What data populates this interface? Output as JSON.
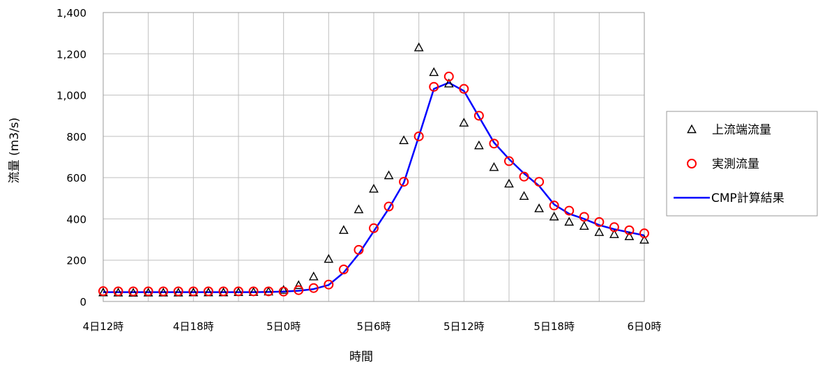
{
  "chart_data": {
    "type": "line",
    "title": "",
    "xlabel": "時間",
    "ylabel": "流量 (m3/s)",
    "ylim": [
      0,
      1400
    ],
    "ytick_values": [
      0,
      200,
      400,
      600,
      800,
      1000,
      1200,
      1400
    ],
    "ytick_labels": [
      "0",
      "200",
      "400",
      "600",
      "800",
      "1,000",
      "1,200",
      "1,400"
    ],
    "xlim": [
      0,
      36
    ],
    "xtick_values": [
      0,
      6,
      12,
      18,
      24,
      30,
      36
    ],
    "xtick_labels": [
      "4日12時",
      "4日18時",
      "5日0時",
      "5日6時",
      "5日12時",
      "5日18時",
      "6日0時"
    ],
    "grid": true,
    "legend_position": "right",
    "series": [
      {
        "name": "上流端流量",
        "style": "triangle-marker",
        "color": "#000000",
        "x": [
          0,
          1,
          2,
          3,
          4,
          5,
          6,
          7,
          8,
          9,
          10,
          11,
          12,
          13,
          14,
          15,
          16,
          17,
          18,
          19,
          20,
          21,
          22,
          23,
          24,
          25,
          26,
          27,
          28,
          29,
          30,
          31,
          32,
          33,
          34,
          35,
          36
        ],
        "values": [
          43,
          42,
          41,
          42,
          42,
          42,
          43,
          43,
          43,
          44,
          45,
          47,
          55,
          78,
          120,
          205,
          345,
          445,
          545,
          610,
          780,
          1230,
          1110,
          1055,
          865,
          755,
          650,
          570,
          510,
          450,
          410,
          385,
          365,
          335,
          325,
          315,
          298
        ]
      },
      {
        "name": "実測流量",
        "style": "circle-marker",
        "color": "#ff0000",
        "x": [
          0,
          1,
          2,
          3,
          4,
          5,
          6,
          7,
          8,
          9,
          10,
          11,
          12,
          13,
          14,
          15,
          16,
          17,
          18,
          19,
          20,
          21,
          22,
          23,
          24,
          25,
          26,
          27,
          28,
          29,
          30,
          31,
          32,
          33,
          34,
          35,
          36
        ],
        "values": [
          50,
          49,
          49,
          49,
          49,
          49,
          49,
          49,
          49,
          49,
          49,
          49,
          48,
          55,
          65,
          82,
          155,
          250,
          355,
          460,
          580,
          800,
          1040,
          1090,
          1030,
          900,
          765,
          680,
          605,
          580,
          465,
          440,
          410,
          385,
          360,
          345,
          330
        ]
      },
      {
        "name": "CMP計算結果",
        "style": "line",
        "color": "#0000ff",
        "x": [
          0,
          1,
          2,
          3,
          4,
          5,
          6,
          7,
          8,
          9,
          10,
          11,
          12,
          13,
          14,
          15,
          16,
          17,
          18,
          19,
          20,
          21,
          22,
          23,
          24,
          25,
          26,
          27,
          28,
          29,
          30,
          31,
          32,
          33,
          34,
          35,
          36
        ],
        "values": [
          45,
          45,
          45,
          45,
          45,
          45,
          45,
          45,
          45,
          45,
          45,
          46,
          48,
          52,
          60,
          80,
          140,
          230,
          340,
          450,
          575,
          800,
          1030,
          1060,
          1020,
          895,
          770,
          690,
          620,
          560,
          470,
          425,
          400,
          370,
          350,
          335,
          320
        ]
      }
    ]
  }
}
